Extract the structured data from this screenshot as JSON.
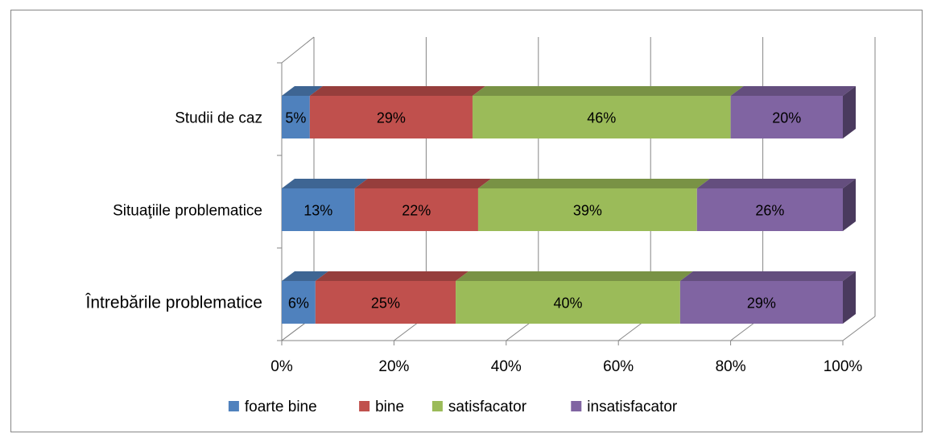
{
  "chart_data": {
    "type": "bar",
    "orientation": "horizontal",
    "stacked": "percent",
    "three_d": true,
    "categories": [
      "Studii de caz",
      "Situaţiile problematice",
      "Întrebările problematice"
    ],
    "series": [
      {
        "name": "foarte bine",
        "color": "#4f81bd",
        "values": [
          5,
          13,
          6
        ]
      },
      {
        "name": "bine",
        "color": "#c0504d",
        "values": [
          29,
          22,
          25
        ]
      },
      {
        "name": "satisfacator",
        "color": "#9bbb59",
        "values": [
          46,
          39,
          40
        ]
      },
      {
        "name": "insatisfacator",
        "color": "#8064a2",
        "values": [
          20,
          26,
          29
        ]
      }
    ],
    "data_labels": [
      [
        "5%",
        "13%",
        "6%"
      ],
      [
        "29%",
        "22%",
        "25%"
      ],
      [
        "46%",
        "39%",
        "40%"
      ],
      [
        "20%",
        "26%",
        "29%"
      ]
    ],
    "x_ticks": [
      "0%",
      "20%",
      "40%",
      "60%",
      "80%",
      "100%"
    ],
    "xlim": [
      0,
      100
    ],
    "grid": "vertical",
    "legend_position": "bottom"
  }
}
